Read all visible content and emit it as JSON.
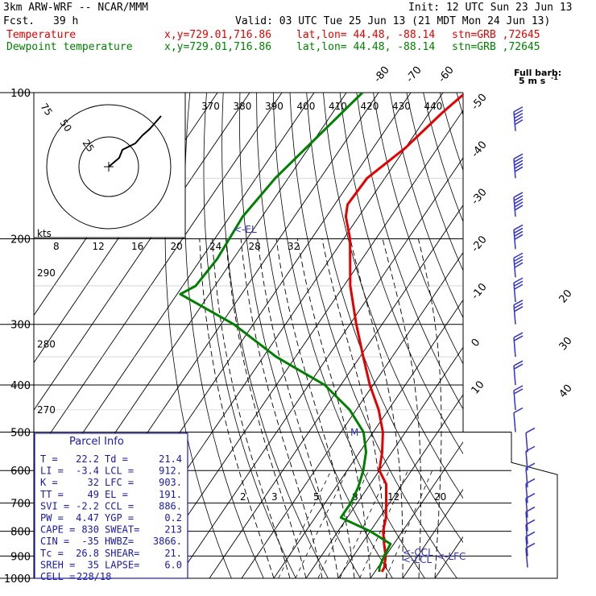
{
  "header": {
    "model": "3km ARW-WRF -- NCAR/MMM",
    "init": "Init: 12 UTC Sun 23 Jun 13",
    "fcst_label": "Fcst.",
    "fcst_value": "39 h",
    "valid": "Valid: 03 UTC Tue 25 Jun 13 (21 MDT Mon 24 Jun 13)",
    "temp_name": "Temperature",
    "dew_name": "Dewpoint temperature",
    "xy": "x,y=729.01,716.86",
    "latlon": "lat,lon= 44.48, -88.14",
    "stn": "stn=GRB ,72645"
  },
  "barb_key": {
    "title": "Full barb:",
    "value": "5 m s",
    "exp": "-1"
  },
  "hodograph": {
    "units": "kts",
    "ring_labels": [
      "75",
      "50",
      "25"
    ]
  },
  "parcel_info": {
    "title": "Parcel Info",
    "rows": [
      [
        "T  =",
        "22.2",
        "Td =",
        "21.4"
      ],
      [
        "LI =",
        "-3.4",
        "LCL =",
        "912."
      ],
      [
        "K  =",
        "32",
        "LFC =",
        "903."
      ],
      [
        "TT =",
        "49",
        "EL  =",
        "191."
      ],
      [
        "SVI =",
        "-2.2",
        "CCL =",
        "886."
      ],
      [
        "PW =",
        "4.47",
        "YGP =",
        "0.2"
      ],
      [
        "CAPE =",
        "830",
        "SWEAT=",
        "213"
      ],
      [
        "CIN =",
        "-35",
        "HWBZ=",
        "3866."
      ],
      [
        "Tc =",
        "26.8",
        "SHEAR=",
        "21."
      ],
      [
        "SREH =",
        "35",
        "LAPSE=",
        "6.0"
      ],
      [
        "CELL =",
        "228/18",
        "",
        ""
      ]
    ]
  },
  "annotations": {
    "el": "<-EL",
    "ccl": "<-CCL",
    "lcl": "<-LCL",
    "lfc": "<-LFC",
    "m": "M"
  },
  "colors": {
    "temperature": "#e60000",
    "dewpoint": "#008000",
    "wind": "#3333cc",
    "parcel_box": "#1a1aa6",
    "theta": "#000000"
  },
  "chart_data": {
    "type": "line",
    "title": "3km ARW-WRF -- NCAR/MMM",
    "y_axis": {
      "scale": "log",
      "ticks": [
        100,
        200,
        300,
        400,
        500,
        600,
        700,
        800,
        900,
        1000
      ]
    },
    "isotherm_labels": [
      -80,
      -70,
      -60,
      -50,
      -40,
      -30,
      -20,
      -10,
      0,
      10,
      20,
      30,
      40
    ],
    "theta_labels": [
      370,
      380,
      390,
      400,
      410,
      420,
      430,
      440
    ],
    "mixing_ratio_labels": [
      "2",
      "3",
      "5",
      "8",
      "12",
      "20"
    ],
    "theta_e_labels": [
      {
        "value": "290",
        "p": 235
      },
      {
        "value": "280",
        "p": 330
      },
      {
        "value": "270",
        "p": 450
      }
    ],
    "inset_labels": [
      "8",
      "12",
      "16",
      "20",
      "24",
      "28",
      "32"
    ],
    "series": [
      {
        "name": "Temperature",
        "points": [
          {
            "p": 100,
            "t": -53
          },
          {
            "p": 110,
            "t": -56
          },
          {
            "p": 130,
            "t": -60
          },
          {
            "p": 150,
            "t": -65.5
          },
          {
            "p": 170,
            "t": -66
          },
          {
            "p": 180,
            "t": -64
          },
          {
            "p": 200,
            "t": -58
          },
          {
            "p": 250,
            "t": -48
          },
          {
            "p": 300,
            "t": -38
          },
          {
            "p": 350,
            "t": -29
          },
          {
            "p": 400,
            "t": -21
          },
          {
            "p": 450,
            "t": -13
          },
          {
            "p": 500,
            "t": -7
          },
          {
            "p": 550,
            "t": -3
          },
          {
            "p": 600,
            "t": 0
          },
          {
            "p": 640,
            "t": 5
          },
          {
            "p": 700,
            "t": 9
          },
          {
            "p": 750,
            "t": 12
          },
          {
            "p": 800,
            "t": 14
          },
          {
            "p": 850,
            "t": 17
          },
          {
            "p": 900,
            "t": 20
          },
          {
            "p": 950,
            "t": 22
          },
          {
            "p": 970,
            "t": 22.2
          }
        ]
      },
      {
        "name": "Dewpoint temperature",
        "points": [
          {
            "p": 100,
            "t": -85
          },
          {
            "p": 150,
            "t": -94
          },
          {
            "p": 180,
            "t": -96
          },
          {
            "p": 220,
            "t": -95
          },
          {
            "p": 250,
            "t": -96
          },
          {
            "p": 260,
            "t": -99
          },
          {
            "p": 300,
            "t": -76
          },
          {
            "p": 350,
            "t": -56
          },
          {
            "p": 400,
            "t": -35
          },
          {
            "p": 450,
            "t": -22
          },
          {
            "p": 500,
            "t": -13
          },
          {
            "p": 550,
            "t": -8
          },
          {
            "p": 600,
            "t": -5
          },
          {
            "p": 650,
            "t": -3
          },
          {
            "p": 700,
            "t": -2
          },
          {
            "p": 750,
            "t": -2
          },
          {
            "p": 800,
            "t": 10
          },
          {
            "p": 850,
            "t": 19
          },
          {
            "p": 900,
            "t": 19.5
          },
          {
            "p": 950,
            "t": 20.5
          },
          {
            "p": 970,
            "t": 21.4
          }
        ]
      }
    ],
    "wind_barbs": [
      {
        "p": 120,
        "dir": 270,
        "kt": 55
      },
      {
        "p": 150,
        "dir": 270,
        "kt": 50
      },
      {
        "p": 180,
        "dir": 275,
        "kt": 45
      },
      {
        "p": 210,
        "dir": 270,
        "kt": 40
      },
      {
        "p": 240,
        "dir": 265,
        "kt": 35
      },
      {
        "p": 270,
        "dir": 260,
        "kt": 30
      },
      {
        "p": 300,
        "dir": 255,
        "kt": 25
      },
      {
        "p": 350,
        "dir": 250,
        "kt": 20
      },
      {
        "p": 400,
        "dir": 245,
        "kt": 15
      },
      {
        "p": 450,
        "dir": 240,
        "kt": 15
      },
      {
        "p": 500,
        "dir": 240,
        "kt": 10
      },
      {
        "p": 550,
        "dir": 245,
        "kt": 10
      },
      {
        "p": 600,
        "dir": 220,
        "kt": 10
      },
      {
        "p": 650,
        "dir": 200,
        "kt": 10
      },
      {
        "p": 700,
        "dir": 200,
        "kt": 10
      },
      {
        "p": 750,
        "dir": 190,
        "kt": 10
      },
      {
        "p": 800,
        "dir": 200,
        "kt": 10
      },
      {
        "p": 850,
        "dir": 220,
        "kt": 10
      },
      {
        "p": 900,
        "dir": 220,
        "kt": 10
      },
      {
        "p": 950,
        "dir": 210,
        "kt": 5
      }
    ]
  }
}
